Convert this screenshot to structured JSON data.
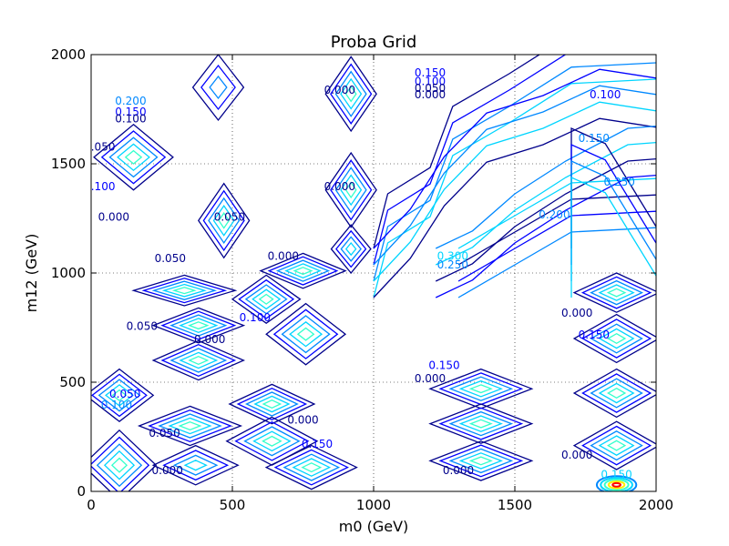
{
  "chart_data": {
    "type": "contour",
    "title": "Proba Grid",
    "xlabel": "m0 (GeV)",
    "ylabel": "m12 (GeV)",
    "xlim": [
      0,
      2000
    ],
    "ylim": [
      0,
      2000
    ],
    "xticks": [
      0,
      500,
      1000,
      1500,
      2000
    ],
    "yticks": [
      0,
      500,
      1000,
      1500,
      2000
    ],
    "grid": true,
    "colors": {
      "dark": "#00008b",
      "blue": "#0000ff",
      "mid": "#0088ff",
      "cyan": "#00d5ff",
      "light": "#33ffcc",
      "yellow": "#ffee00",
      "red": "#ff0000"
    },
    "peaks": [
      {
        "x": 920,
        "y": 1820,
        "rx": 90,
        "ry": 170,
        "levels": 5
      },
      {
        "x": 920,
        "y": 1380,
        "rx": 90,
        "ry": 170,
        "levels": 5
      },
      {
        "x": 470,
        "y": 1240,
        "rx": 90,
        "ry": 170,
        "levels": 5
      },
      {
        "x": 150,
        "y": 1530,
        "rx": 140,
        "ry": 150,
        "levels": 5
      },
      {
        "x": 450,
        "y": 1850,
        "rx": 90,
        "ry": 150,
        "levels": 3
      },
      {
        "x": 750,
        "y": 1010,
        "rx": 150,
        "ry": 80,
        "levels": 5
      },
      {
        "x": 920,
        "y": 1110,
        "rx": 70,
        "ry": 110,
        "levels": 4
      },
      {
        "x": 330,
        "y": 920,
        "rx": 180,
        "ry": 70,
        "levels": 5
      },
      {
        "x": 620,
        "y": 880,
        "rx": 120,
        "ry": 110,
        "levels": 5
      },
      {
        "x": 380,
        "y": 760,
        "rx": 160,
        "ry": 80,
        "levels": 5
      },
      {
        "x": 380,
        "y": 600,
        "rx": 160,
        "ry": 90,
        "levels": 5
      },
      {
        "x": 760,
        "y": 720,
        "rx": 140,
        "ry": 140,
        "levels": 5
      },
      {
        "x": 100,
        "y": 440,
        "rx": 120,
        "ry": 120,
        "levels": 5
      },
      {
        "x": 350,
        "y": 300,
        "rx": 180,
        "ry": 90,
        "levels": 5
      },
      {
        "x": 640,
        "y": 400,
        "rx": 150,
        "ry": 90,
        "levels": 5
      },
      {
        "x": 640,
        "y": 230,
        "rx": 160,
        "ry": 110,
        "levels": 5
      },
      {
        "x": 100,
        "y": 120,
        "rx": 130,
        "ry": 160,
        "levels": 5
      },
      {
        "x": 370,
        "y": 120,
        "rx": 150,
        "ry": 90,
        "levels": 4
      },
      {
        "x": 780,
        "y": 110,
        "rx": 160,
        "ry": 100,
        "levels": 5
      },
      {
        "x": 1380,
        "y": 470,
        "rx": 180,
        "ry": 90,
        "levels": 5
      },
      {
        "x": 1380,
        "y": 310,
        "rx": 180,
        "ry": 90,
        "levels": 5
      },
      {
        "x": 1380,
        "y": 140,
        "rx": 180,
        "ry": 90,
        "levels": 5
      },
      {
        "x": 1860,
        "y": 910,
        "rx": 150,
        "ry": 90,
        "levels": 5
      },
      {
        "x": 1860,
        "y": 700,
        "rx": 150,
        "ry": 110,
        "levels": 5
      },
      {
        "x": 1860,
        "y": 450,
        "rx": 150,
        "ry": 110,
        "levels": 5
      },
      {
        "x": 1860,
        "y": 210,
        "rx": 150,
        "ry": 110,
        "levels": 5
      }
    ],
    "bands": [
      [
        [
          1000,
          1000
        ],
        [
          1050,
          1250
        ],
        [
          1200,
          1370
        ],
        [
          1280,
          1650
        ],
        [
          1480,
          1800
        ],
        [
          1700,
          1980
        ],
        [
          2000,
          2000
        ]
      ],
      [
        [
          1000,
          1000
        ],
        [
          1130,
          1180
        ],
        [
          1250,
          1420
        ],
        [
          1400,
          1620
        ],
        [
          1600,
          1700
        ],
        [
          1800,
          1820
        ],
        [
          2000,
          1780
        ]
      ],
      [
        [
          1220,
          1000
        ],
        [
          1350,
          1080
        ],
        [
          1500,
          1250
        ],
        [
          1680,
          1400
        ],
        [
          1900,
          1550
        ],
        [
          2000,
          1560
        ]
      ],
      [
        [
          1300,
          1000
        ],
        [
          1500,
          1150
        ],
        [
          1700,
          1300
        ],
        [
          2000,
          1320
        ]
      ],
      [
        [
          1700,
          1000
        ],
        [
          1700,
          1550
        ],
        [
          1820,
          1480
        ],
        [
          2000,
          1100
        ]
      ]
    ],
    "hot_spot": {
      "x": 1860,
      "y": 30,
      "rx": 70,
      "ry": 40
    },
    "contour_labels": [
      {
        "x": 140,
        "y": 1770,
        "text": "0.200",
        "color": "mid"
      },
      {
        "x": 140,
        "y": 1720,
        "text": "0.150",
        "color": "blue"
      },
      {
        "x": 140,
        "y": 1690,
        "text": "0.100",
        "color": "dark"
      },
      {
        "x": 30,
        "y": 1560,
        "text": "0.050",
        "color": "dark"
      },
      {
        "x": 30,
        "y": 1380,
        "text": "0.100",
        "color": "blue"
      },
      {
        "x": 80,
        "y": 1240,
        "text": "0.000",
        "color": "dark"
      },
      {
        "x": 490,
        "y": 1240,
        "text": "0.050",
        "color": "dark"
      },
      {
        "x": 880,
        "y": 1820,
        "text": "0.000",
        "color": "dark"
      },
      {
        "x": 880,
        "y": 1380,
        "text": "0.000",
        "color": "dark"
      },
      {
        "x": 1200,
        "y": 1900,
        "text": "0.150",
        "color": "blue"
      },
      {
        "x": 1200,
        "y": 1860,
        "text": "0.100",
        "color": "blue"
      },
      {
        "x": 1200,
        "y": 1830,
        "text": "0.050",
        "color": "dark"
      },
      {
        "x": 1200,
        "y": 1800,
        "text": "0.000",
        "color": "dark"
      },
      {
        "x": 1820,
        "y": 1800,
        "text": "0.100",
        "color": "blue"
      },
      {
        "x": 1780,
        "y": 1600,
        "text": "0.150",
        "color": "mid"
      },
      {
        "x": 1870,
        "y": 1400,
        "text": "0.250",
        "color": "mid"
      },
      {
        "x": 1640,
        "y": 1250,
        "text": "0.200",
        "color": "mid"
      },
      {
        "x": 1280,
        "y": 1060,
        "text": "0.300",
        "color": "cyan"
      },
      {
        "x": 1280,
        "y": 1020,
        "text": "0.250",
        "color": "mid"
      },
      {
        "x": 280,
        "y": 1050,
        "text": "0.050",
        "color": "dark"
      },
      {
        "x": 680,
        "y": 1060,
        "text": "0.000",
        "color": "dark"
      },
      {
        "x": 180,
        "y": 740,
        "text": "0.050",
        "color": "dark"
      },
      {
        "x": 420,
        "y": 680,
        "text": "0.000",
        "color": "dark"
      },
      {
        "x": 580,
        "y": 780,
        "text": "0.100",
        "color": "blue"
      },
      {
        "x": 120,
        "y": 430,
        "text": "0.050",
        "color": "blue"
      },
      {
        "x": 90,
        "y": 380,
        "text": "0.100",
        "color": "mid"
      },
      {
        "x": 260,
        "y": 250,
        "text": "0.050",
        "color": "dark"
      },
      {
        "x": 270,
        "y": 80,
        "text": "0.000",
        "color": "dark"
      },
      {
        "x": 750,
        "y": 310,
        "text": "0.000",
        "color": "dark"
      },
      {
        "x": 800,
        "y": 200,
        "text": "0.150",
        "color": "blue"
      },
      {
        "x": 1300,
        "y": 80,
        "text": "0.000",
        "color": "dark"
      },
      {
        "x": 1200,
        "y": 500,
        "text": "0.000",
        "color": "dark"
      },
      {
        "x": 1250,
        "y": 560,
        "text": "0.150",
        "color": "blue"
      },
      {
        "x": 1720,
        "y": 800,
        "text": "0.000",
        "color": "dark"
      },
      {
        "x": 1780,
        "y": 700,
        "text": "0.150",
        "color": "blue"
      },
      {
        "x": 1720,
        "y": 150,
        "text": "0.000",
        "color": "dark"
      },
      {
        "x": 1860,
        "y": 60,
        "text": "0.150",
        "color": "cyan"
      }
    ]
  }
}
